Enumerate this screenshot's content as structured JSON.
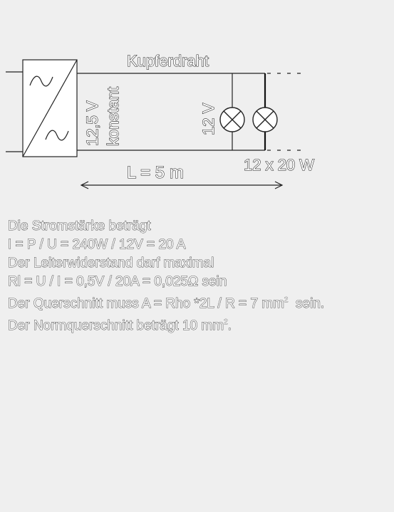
{
  "diagram": {
    "wire_label": "Kupferdraht",
    "supply_voltage": "12,5 V",
    "supply_mode": "konstant",
    "lamp_voltage": "12 V",
    "lamps": "12 x 20 W",
    "length": "L = 5 m"
  },
  "calculation": {
    "line1": "Die Stromstärke beträgt",
    "line2": "I = P / U = 240W / 12V = 20 A",
    "line3": "Der Leiterwiderstand darf maximal",
    "line4": "Rl = U / I = 0,5V / 20A = 0,025Ω sein",
    "line5_before": "Der Querschnitt muss A = Rho *2L / R = 7 mm",
    "line5_sup": "2",
    "line5_after": "  sein.",
    "line6_before": "Der Normquerschnitt beträgt 10 mm",
    "line6_sup": "2",
    "line6_after": "."
  }
}
